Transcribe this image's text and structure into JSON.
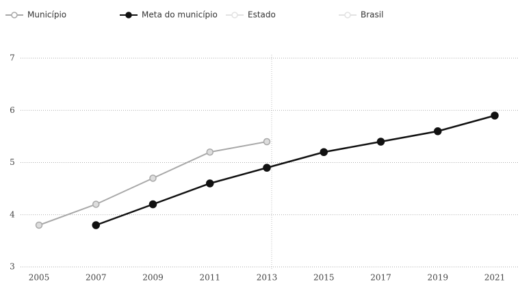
{
  "chart_data": {
    "type": "line",
    "x": [
      2005,
      2007,
      2009,
      2011,
      2013,
      2015,
      2017,
      2019,
      2021
    ],
    "series": [
      {
        "name": "Município",
        "color": "#a8a8a8",
        "values": [
          3.8,
          4.2,
          4.7,
          5.2,
          5.4,
          null,
          null,
          null,
          null
        ]
      },
      {
        "name": "Meta do município",
        "color": "#111111",
        "values": [
          null,
          3.8,
          4.2,
          4.6,
          4.9,
          5.2,
          5.4,
          5.6,
          5.9
        ]
      },
      {
        "name": "Estado",
        "color": "#e2e2e2",
        "values": [
          null,
          null,
          null,
          null,
          null,
          null,
          null,
          null,
          null
        ]
      },
      {
        "name": "Brasil",
        "color": "#e2e2e2",
        "values": [
          null,
          null,
          null,
          null,
          null,
          null,
          null,
          null,
          null
        ]
      }
    ],
    "xlim": [
      2005,
      2021
    ],
    "xticks": [
      2005,
      2007,
      2009,
      2011,
      2013,
      2015,
      2017,
      2019,
      2021
    ],
    "ylim": [
      3,
      7
    ],
    "yticks": [
      3,
      4,
      5,
      6,
      7
    ],
    "grid": true
  }
}
